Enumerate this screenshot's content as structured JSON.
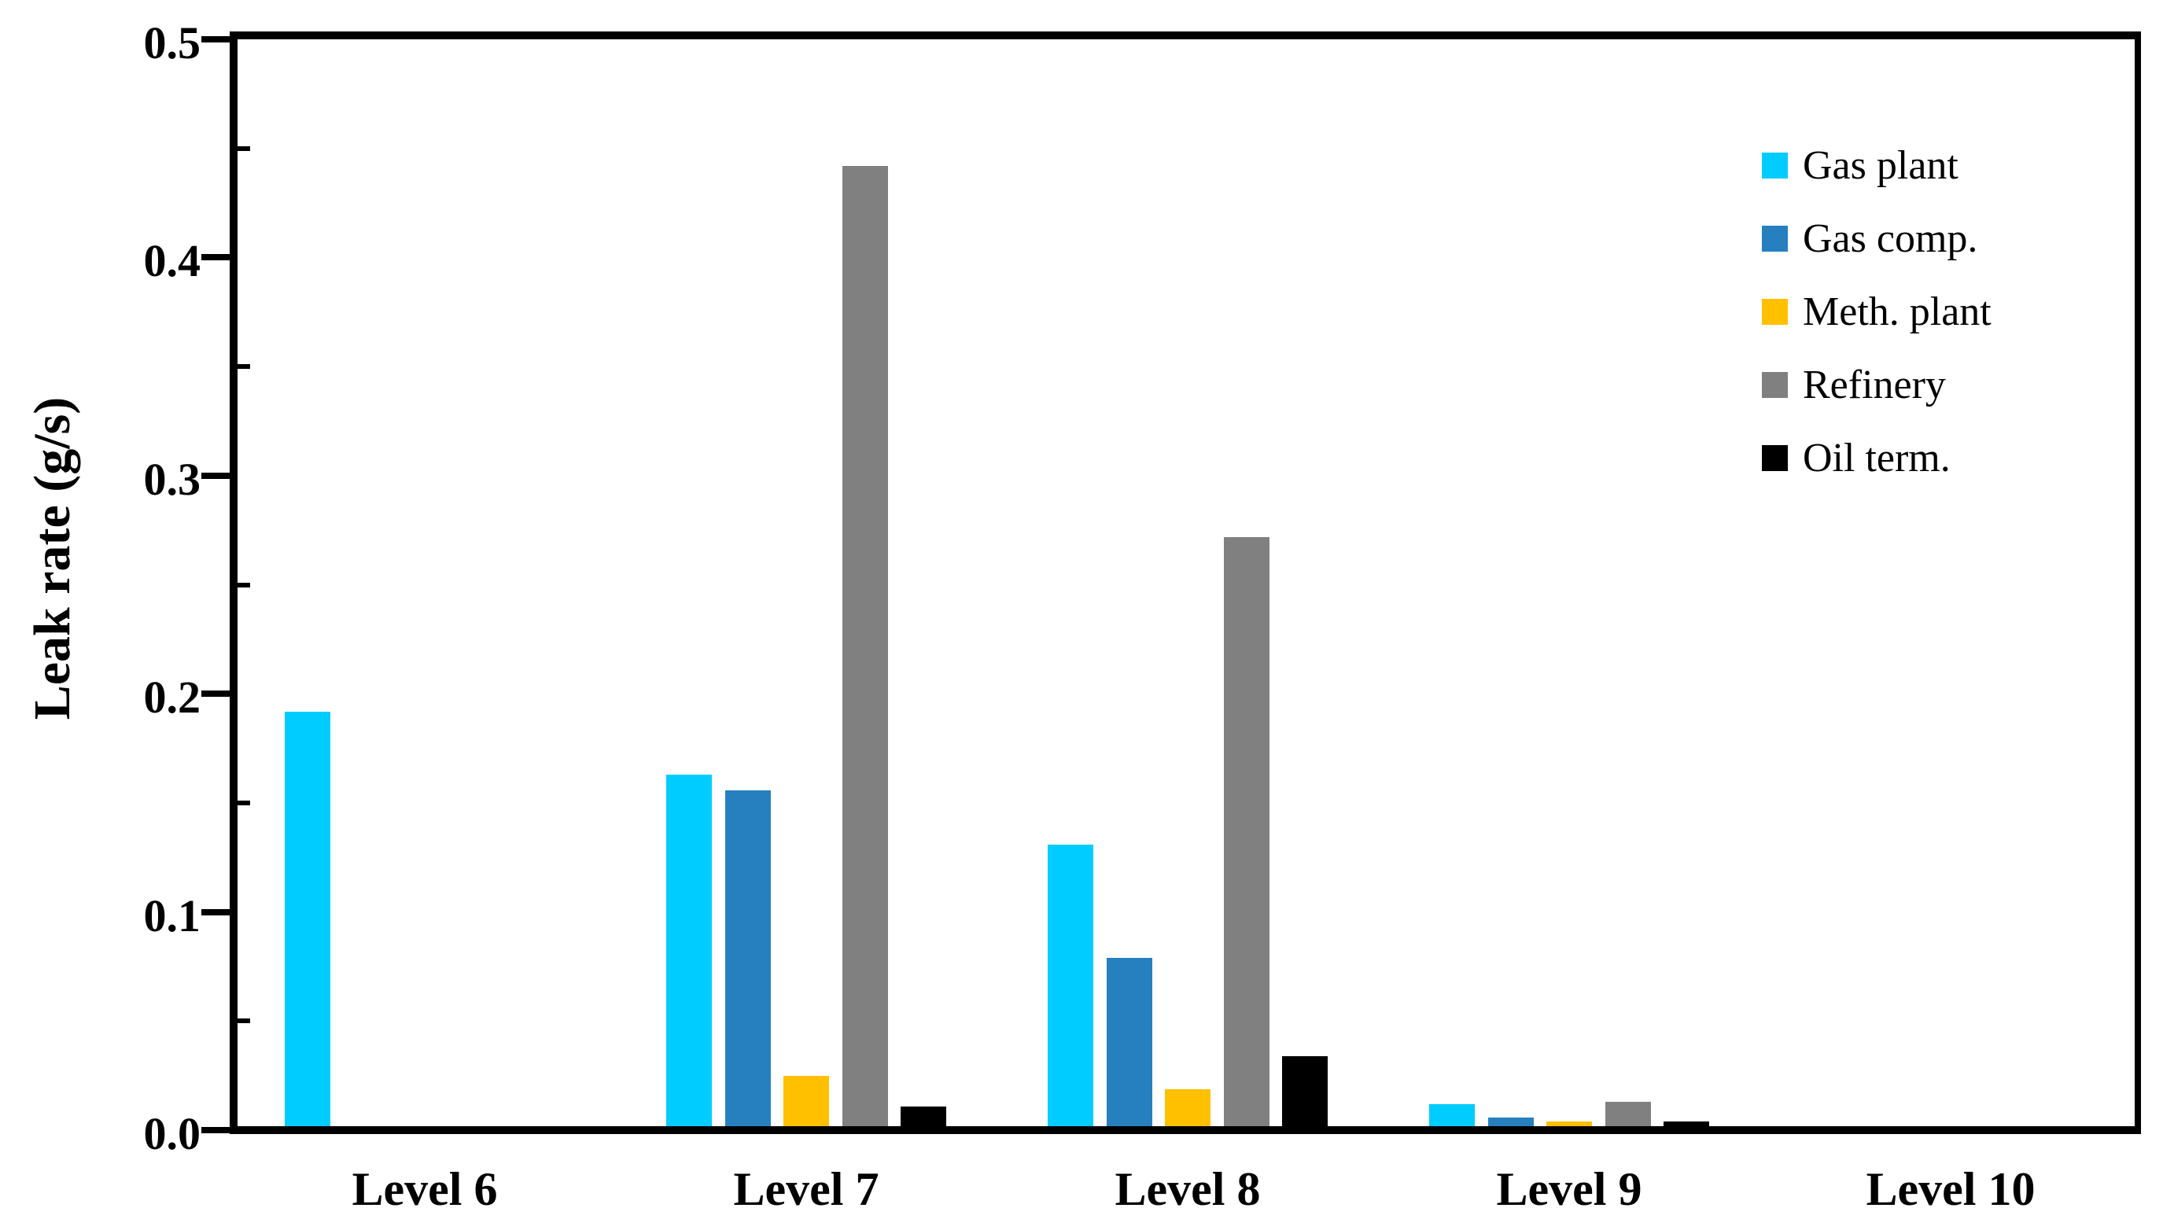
{
  "chart_data": {
    "type": "bar",
    "title": "",
    "xlabel": "",
    "ylabel": "Leak rate (g/s)",
    "categories": [
      "Level 6",
      "Level 7",
      "Level 8",
      "Level 9",
      "Level 10"
    ],
    "series": [
      {
        "name": "Gas plant",
        "color": "#00CCFF",
        "values": [
          0.19,
          0.161,
          0.129,
          0.01,
          0
        ]
      },
      {
        "name": "Gas comp.",
        "color": "#2680BF",
        "values": [
          0,
          0.154,
          0.077,
          0.004,
          0
        ]
      },
      {
        "name": "Meth. plant",
        "color": "#FFC000",
        "values": [
          0,
          0.023,
          0.017,
          0.002,
          0
        ]
      },
      {
        "name": "Refinery",
        "color": "#808080",
        "values": [
          0,
          0.44,
          0.27,
          0.011,
          0
        ]
      },
      {
        "name": "Oil term.",
        "color": "#000000",
        "values": [
          0,
          0.009,
          0.032,
          0.002,
          0
        ]
      }
    ],
    "ylim": [
      0.0,
      0.5
    ],
    "ytick_major_step": 0.1,
    "ytick_minor_step": 0.05,
    "ytick_labels": [
      "0.0",
      "0.1",
      "0.2",
      "0.3",
      "0.4",
      "0.5"
    ],
    "grid": "off",
    "legend_position": "upper-right-inside",
    "axis_color": "#000000",
    "background_color": "#FFFFFF"
  }
}
